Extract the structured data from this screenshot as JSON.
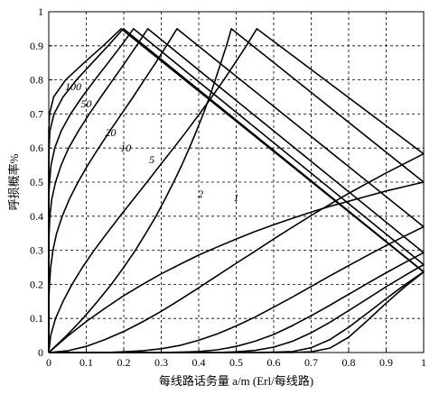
{
  "chart_data": {
    "type": "line",
    "title": "",
    "xlabel": "每线路话务量 a/m (Erl/每线路)",
    "ylabel": "呼损概率%",
    "xlim": [
      0,
      1
    ],
    "ylim": [
      0,
      1
    ],
    "grid": true,
    "grid_style": "dashed",
    "x_ticks": [
      "0",
      "0.1",
      "0.2",
      "0.3",
      "0.4",
      "0.5",
      "0.6",
      "0.7",
      "0.8",
      "0.9",
      "1"
    ],
    "y_ticks": [
      "0",
      "0.1",
      "0.2",
      "0.3",
      "0.4",
      "0.5",
      "0.6",
      "0.7",
      "0.8",
      "0.9",
      "1"
    ],
    "x": [
      0,
      0.05,
      0.1,
      0.15,
      0.2,
      0.25,
      0.3,
      0.35,
      0.4,
      0.45,
      0.5,
      0.55,
      0.6,
      0.65,
      0.7,
      0.75,
      0.8,
      0.85,
      0.9,
      0.95,
      1
    ],
    "series": [
      {
        "name": "1",
        "values": [
          0,
          0.048,
          0.091,
          0.13,
          0.167,
          0.2,
          0.231,
          0.259,
          0.286,
          0.31,
          0.333,
          0.355,
          0.375,
          0.394,
          0.412,
          0.429,
          0.444,
          0.459,
          0.474,
          0.487,
          0.5
        ]
      },
      {
        "name": "2",
        "values": [
          0,
          0.005,
          0.018,
          0.038,
          0.062,
          0.09,
          0.121,
          0.155,
          0.19,
          0.226,
          0.262,
          0.297,
          0.333,
          0.368,
          0.402,
          0.435,
          0.467,
          0.497,
          0.527,
          0.555,
          0.583
        ]
      },
      {
        "name": "5",
        "values": [
          0,
          0,
          0,
          0,
          0.002,
          0.005,
          0.011,
          0.021,
          0.036,
          0.055,
          0.078,
          0.104,
          0.133,
          0.163,
          0.194,
          0.225,
          0.255,
          0.285,
          0.314,
          0.342,
          0.369
        ]
      },
      {
        "name": "10",
        "values": [
          0,
          0,
          0,
          0,
          0,
          0,
          0,
          0.001,
          0.003,
          0.008,
          0.018,
          0.033,
          0.053,
          0.079,
          0.108,
          0.139,
          0.171,
          0.203,
          0.234,
          0.264,
          0.293
        ]
      },
      {
        "name": "20",
        "values": [
          0,
          0,
          0,
          0,
          0,
          0,
          0,
          0,
          0,
          0,
          0.002,
          0.006,
          0.016,
          0.033,
          0.058,
          0.089,
          0.123,
          0.158,
          0.193,
          0.226,
          0.258
        ]
      },
      {
        "name": "50",
        "values": [
          0,
          0,
          0,
          0,
          0,
          0,
          0,
          0,
          0,
          0,
          0,
          0,
          0.001,
          0.003,
          0.014,
          0.038,
          0.074,
          0.116,
          0.158,
          0.199,
          0.237
        ]
      },
      {
        "name": "100",
        "values": [
          0,
          0,
          0,
          0,
          0,
          0,
          0,
          0,
          0,
          0,
          0,
          0,
          0,
          0,
          0.002,
          0.013,
          0.045,
          0.094,
          0.145,
          0.193,
          0.236
        ]
      }
    ],
    "curve_labels": [
      {
        "series": "1",
        "x": 0.445,
        "y": 0.5
      },
      {
        "series": "2",
        "x": 0.455,
        "y": 0.405
      },
      {
        "series": "5",
        "x": 0.555,
        "y": 0.275
      },
      {
        "series": "10",
        "x": 0.59,
        "y": 0.205
      },
      {
        "series": "20",
        "x": 0.635,
        "y": 0.165
      },
      {
        "series": "50",
        "x": 0.72,
        "y": 0.1
      },
      {
        "series": "100",
        "x": 0.77,
        "y": 0.065
      }
    ]
  }
}
